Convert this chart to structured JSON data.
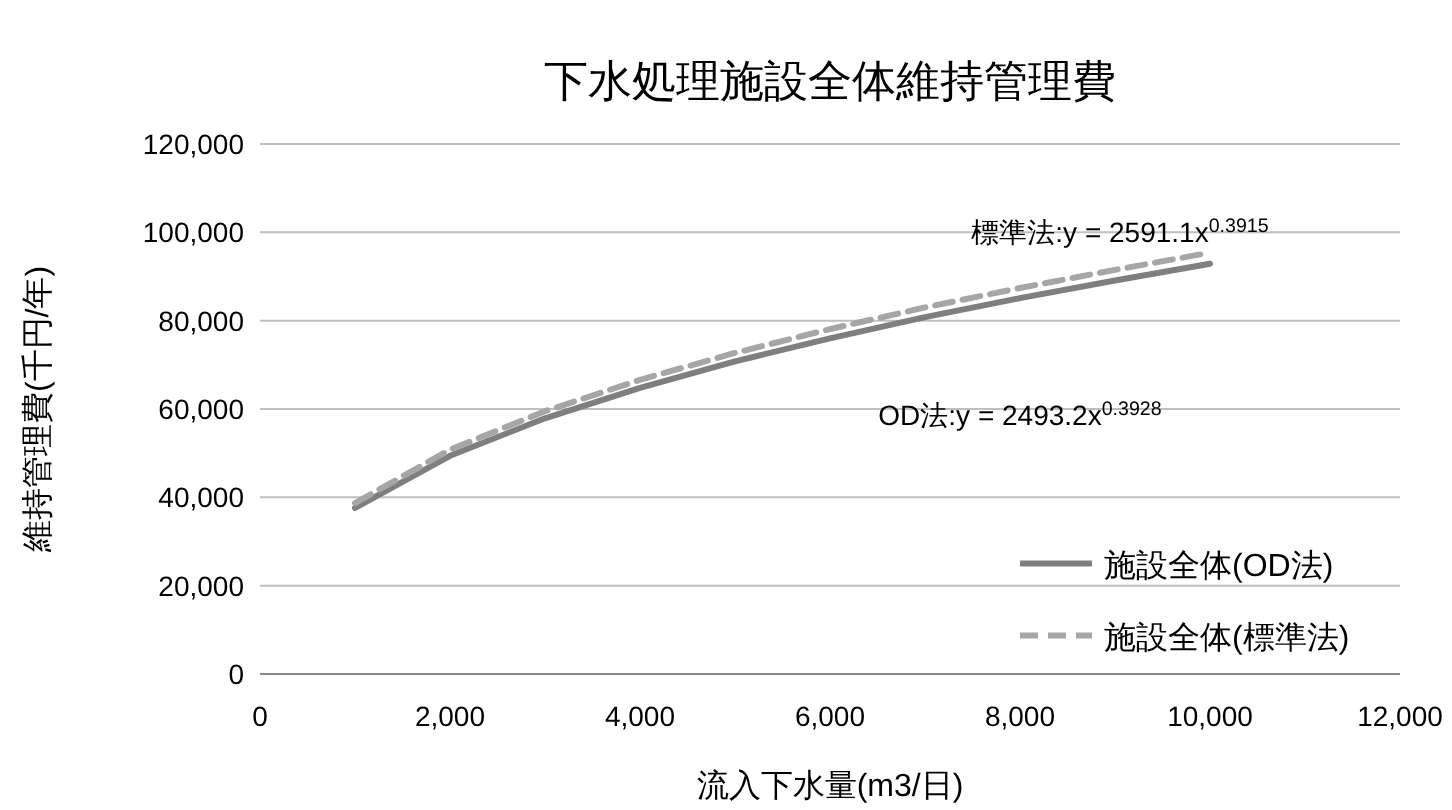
{
  "chart_data": {
    "type": "line",
    "title": "下水処理施設全体維持管理費",
    "xlabel": "流入下水量(m3/日)",
    "ylabel": "維持管理費(千円/年)",
    "x": [
      1000,
      2000,
      3000,
      4000,
      5000,
      6000,
      7000,
      8000,
      9000,
      10000
    ],
    "series": [
      {
        "name": "施設全体(OD法)",
        "color": "#7f7f7f",
        "line_style": "solid",
        "values": [
          37600,
          49400,
          57900,
          64800,
          70800,
          76000,
          80800,
          85100,
          89100,
          92900
        ]
      },
      {
        "name": "施設全体(標準法)",
        "color": "#a6a6a6",
        "line_style": "dashed",
        "values": [
          38700,
          50800,
          59500,
          66600,
          72700,
          78100,
          83000,
          87400,
          91500,
          95400
        ]
      }
    ],
    "xlim": [
      0,
      12000
    ],
    "xticks": [
      0,
      {
        "value": 2000,
        "label": "2,000"
      },
      {
        "value": 4000,
        "label": "4,000"
      },
      {
        "value": 6000,
        "label": "6,000"
      },
      {
        "value": 8000,
        "label": "8,000"
      },
      {
        "value": 10000,
        "label": "10,000"
      },
      {
        "value": 12000,
        "label": "12,000"
      }
    ],
    "ylim": [
      0,
      120000
    ],
    "yticks": [
      0,
      {
        "value": 20000,
        "label": "20,000"
      },
      {
        "value": 40000,
        "label": "40,000"
      },
      {
        "value": 60000,
        "label": "60,000"
      },
      {
        "value": 80000,
        "label": "80,000"
      },
      {
        "value": 100000,
        "label": "100,000"
      },
      {
        "value": 120000,
        "label": "120,000"
      }
    ],
    "annotations": [
      "標準法:y = 2591.1x$^{0.3915}$",
      "OD法:y = 2493.2x$^{0.3928}$"
    ],
    "grid": "y",
    "legend": "bottom right",
    "marker": "none"
  }
}
